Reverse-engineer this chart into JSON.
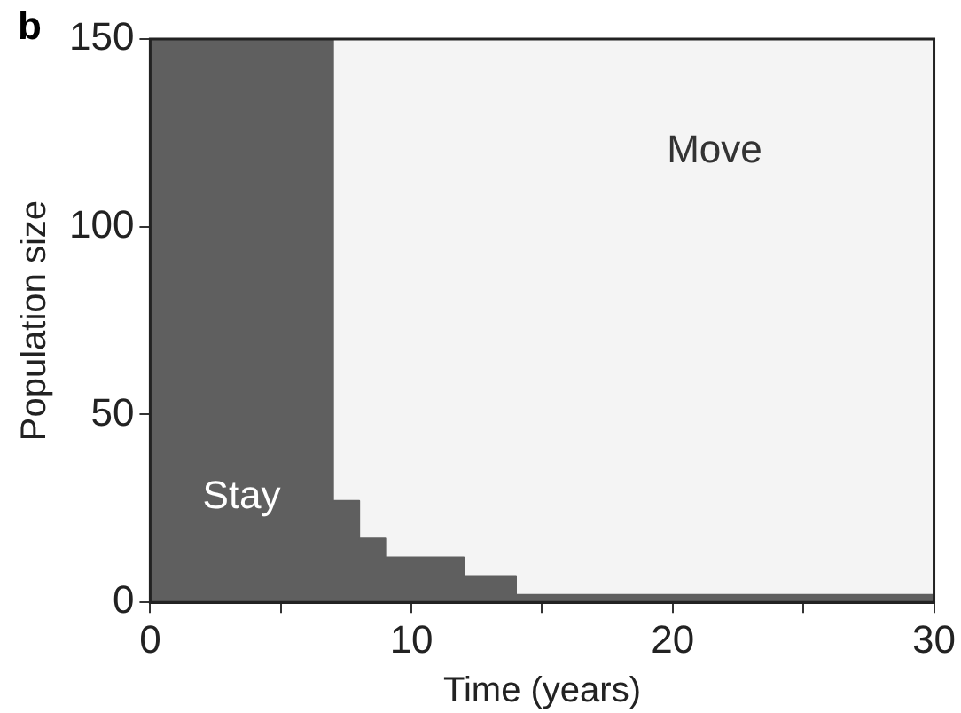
{
  "chart_data": {
    "type": "area",
    "xlabel": "Time (years)",
    "ylabel": "Population size",
    "annotations": [
      "b"
    ],
    "x": [
      0,
      7,
      8,
      9,
      12,
      14,
      30
    ],
    "series": [
      {
        "name": "Stay",
        "color": "#5f5f5f",
        "values": [
          150,
          27,
          17,
          12,
          7,
          2,
          2
        ]
      },
      {
        "name": "Move",
        "color": "#f4f4f4",
        "values": [
          0,
          123,
          133,
          138,
          143,
          148,
          148
        ]
      }
    ],
    "stacked": true,
    "line_style": "solid",
    "marker": "none",
    "xlim": [
      0,
      30
    ],
    "xticks": [
      0,
      {
        "value": 5,
        "label": null
      },
      10,
      {
        "value": 15,
        "label": null
      },
      20,
      {
        "value": 25,
        "label": null
      },
      30
    ],
    "ylim": [
      0,
      150
    ],
    "yticks": [
      0,
      50,
      100,
      150
    ],
    "legend": false
  }
}
